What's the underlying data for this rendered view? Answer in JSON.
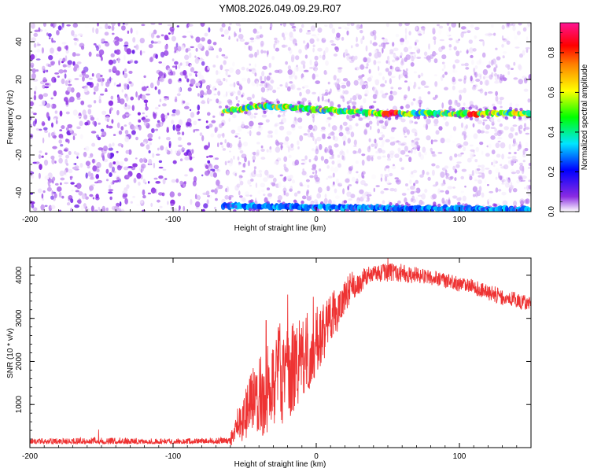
{
  "title": "YM08.2026.049.09.29.R07",
  "chart_data": [
    {
      "type": "heatmap",
      "title": "YM08.2026.049.09.29.R07",
      "xlabel": "Height of straight line (km)",
      "ylabel": "Frequency (Hz)",
      "xlim": [
        -200,
        150
      ],
      "ylim": [
        -50,
        50
      ],
      "x_ticks": [
        "-200",
        "-100",
        "0",
        "100"
      ],
      "y_ticks": [
        "-40",
        "-20",
        "0",
        "20",
        "40"
      ],
      "colorbar": {
        "label": "Normalized spectral amplitude",
        "range": [
          0,
          0.95
        ],
        "ticks": [
          "0.0",
          "0.2",
          "0.4",
          "0.6",
          "0.8"
        ],
        "colormap": [
          "#ffffff",
          "#8a2be2",
          "#0000ff",
          "#00e5ff",
          "#00ff00",
          "#ffff00",
          "#ff8000",
          "#ff0000",
          "#ff1493"
        ]
      },
      "features": [
        {
          "kind": "noise-band",
          "x_range": [
            -200,
            -70
          ],
          "amplitude_range": [
            0.0,
            0.15
          ]
        },
        {
          "kind": "signal-ridge",
          "x_range": [
            -65,
            150
          ],
          "frequency_start": 3,
          "frequency_peak": 6,
          "peak_x": -40,
          "frequency_end": 2,
          "amplitude_range": [
            0.3,
            0.95
          ],
          "strongest_x": [
            50,
            55,
            110
          ]
        },
        {
          "kind": "signal-ridge",
          "x_range": [
            -65,
            150
          ],
          "frequency_start": -47,
          "frequency_end": -49,
          "amplitude_range": [
            0.25,
            0.45
          ]
        }
      ]
    },
    {
      "type": "line",
      "xlabel": "Height of straight line (km)",
      "ylabel": "SNR (10 * v/v)",
      "xlim": [
        -200,
        150
      ],
      "ylim": [
        0,
        4400
      ],
      "x_ticks": [
        "-200",
        "-100",
        "0",
        "100"
      ],
      "y_ticks": [
        "1000",
        "2000",
        "3000",
        "4000"
      ],
      "series": [
        {
          "color": "#ee3333",
          "envelope": [
            {
              "x": -200,
              "low": 30,
              "high": 250
            },
            {
              "x": -150,
              "low": 30,
              "high": 300
            },
            {
              "x": -100,
              "low": 30,
              "high": 250
            },
            {
              "x": -60,
              "low": 40,
              "high": 300
            },
            {
              "x": -55,
              "low": 100,
              "high": 900
            },
            {
              "x": -45,
              "low": 200,
              "high": 1800
            },
            {
              "x": -35,
              "low": 300,
              "high": 2300
            },
            {
              "x": -25,
              "low": 500,
              "high": 3000
            },
            {
              "x": -15,
              "low": 800,
              "high": 3000
            },
            {
              "x": -5,
              "low": 1300,
              "high": 3200
            },
            {
              "x": 5,
              "low": 2000,
              "high": 3500
            },
            {
              "x": 15,
              "low": 2700,
              "high": 3800
            },
            {
              "x": 25,
              "low": 3400,
              "high": 4100
            },
            {
              "x": 40,
              "low": 3850,
              "high": 4250
            },
            {
              "x": 55,
              "low": 3850,
              "high": 4300
            },
            {
              "x": 75,
              "low": 3800,
              "high": 4150
            },
            {
              "x": 90,
              "low": 3700,
              "high": 4050
            },
            {
              "x": 110,
              "low": 3550,
              "high": 3900
            },
            {
              "x": 130,
              "low": 3300,
              "high": 3700
            },
            {
              "x": 150,
              "low": 3150,
              "high": 3500
            }
          ],
          "spikes": [
            {
              "x": -152,
              "value": 420
            },
            {
              "x": -35,
              "value": 2950
            },
            {
              "x": -20,
              "value": 3550
            },
            {
              "x": -2,
              "value": 3500
            },
            {
              "x": 50,
              "value": 4400
            }
          ]
        }
      ]
    }
  ]
}
